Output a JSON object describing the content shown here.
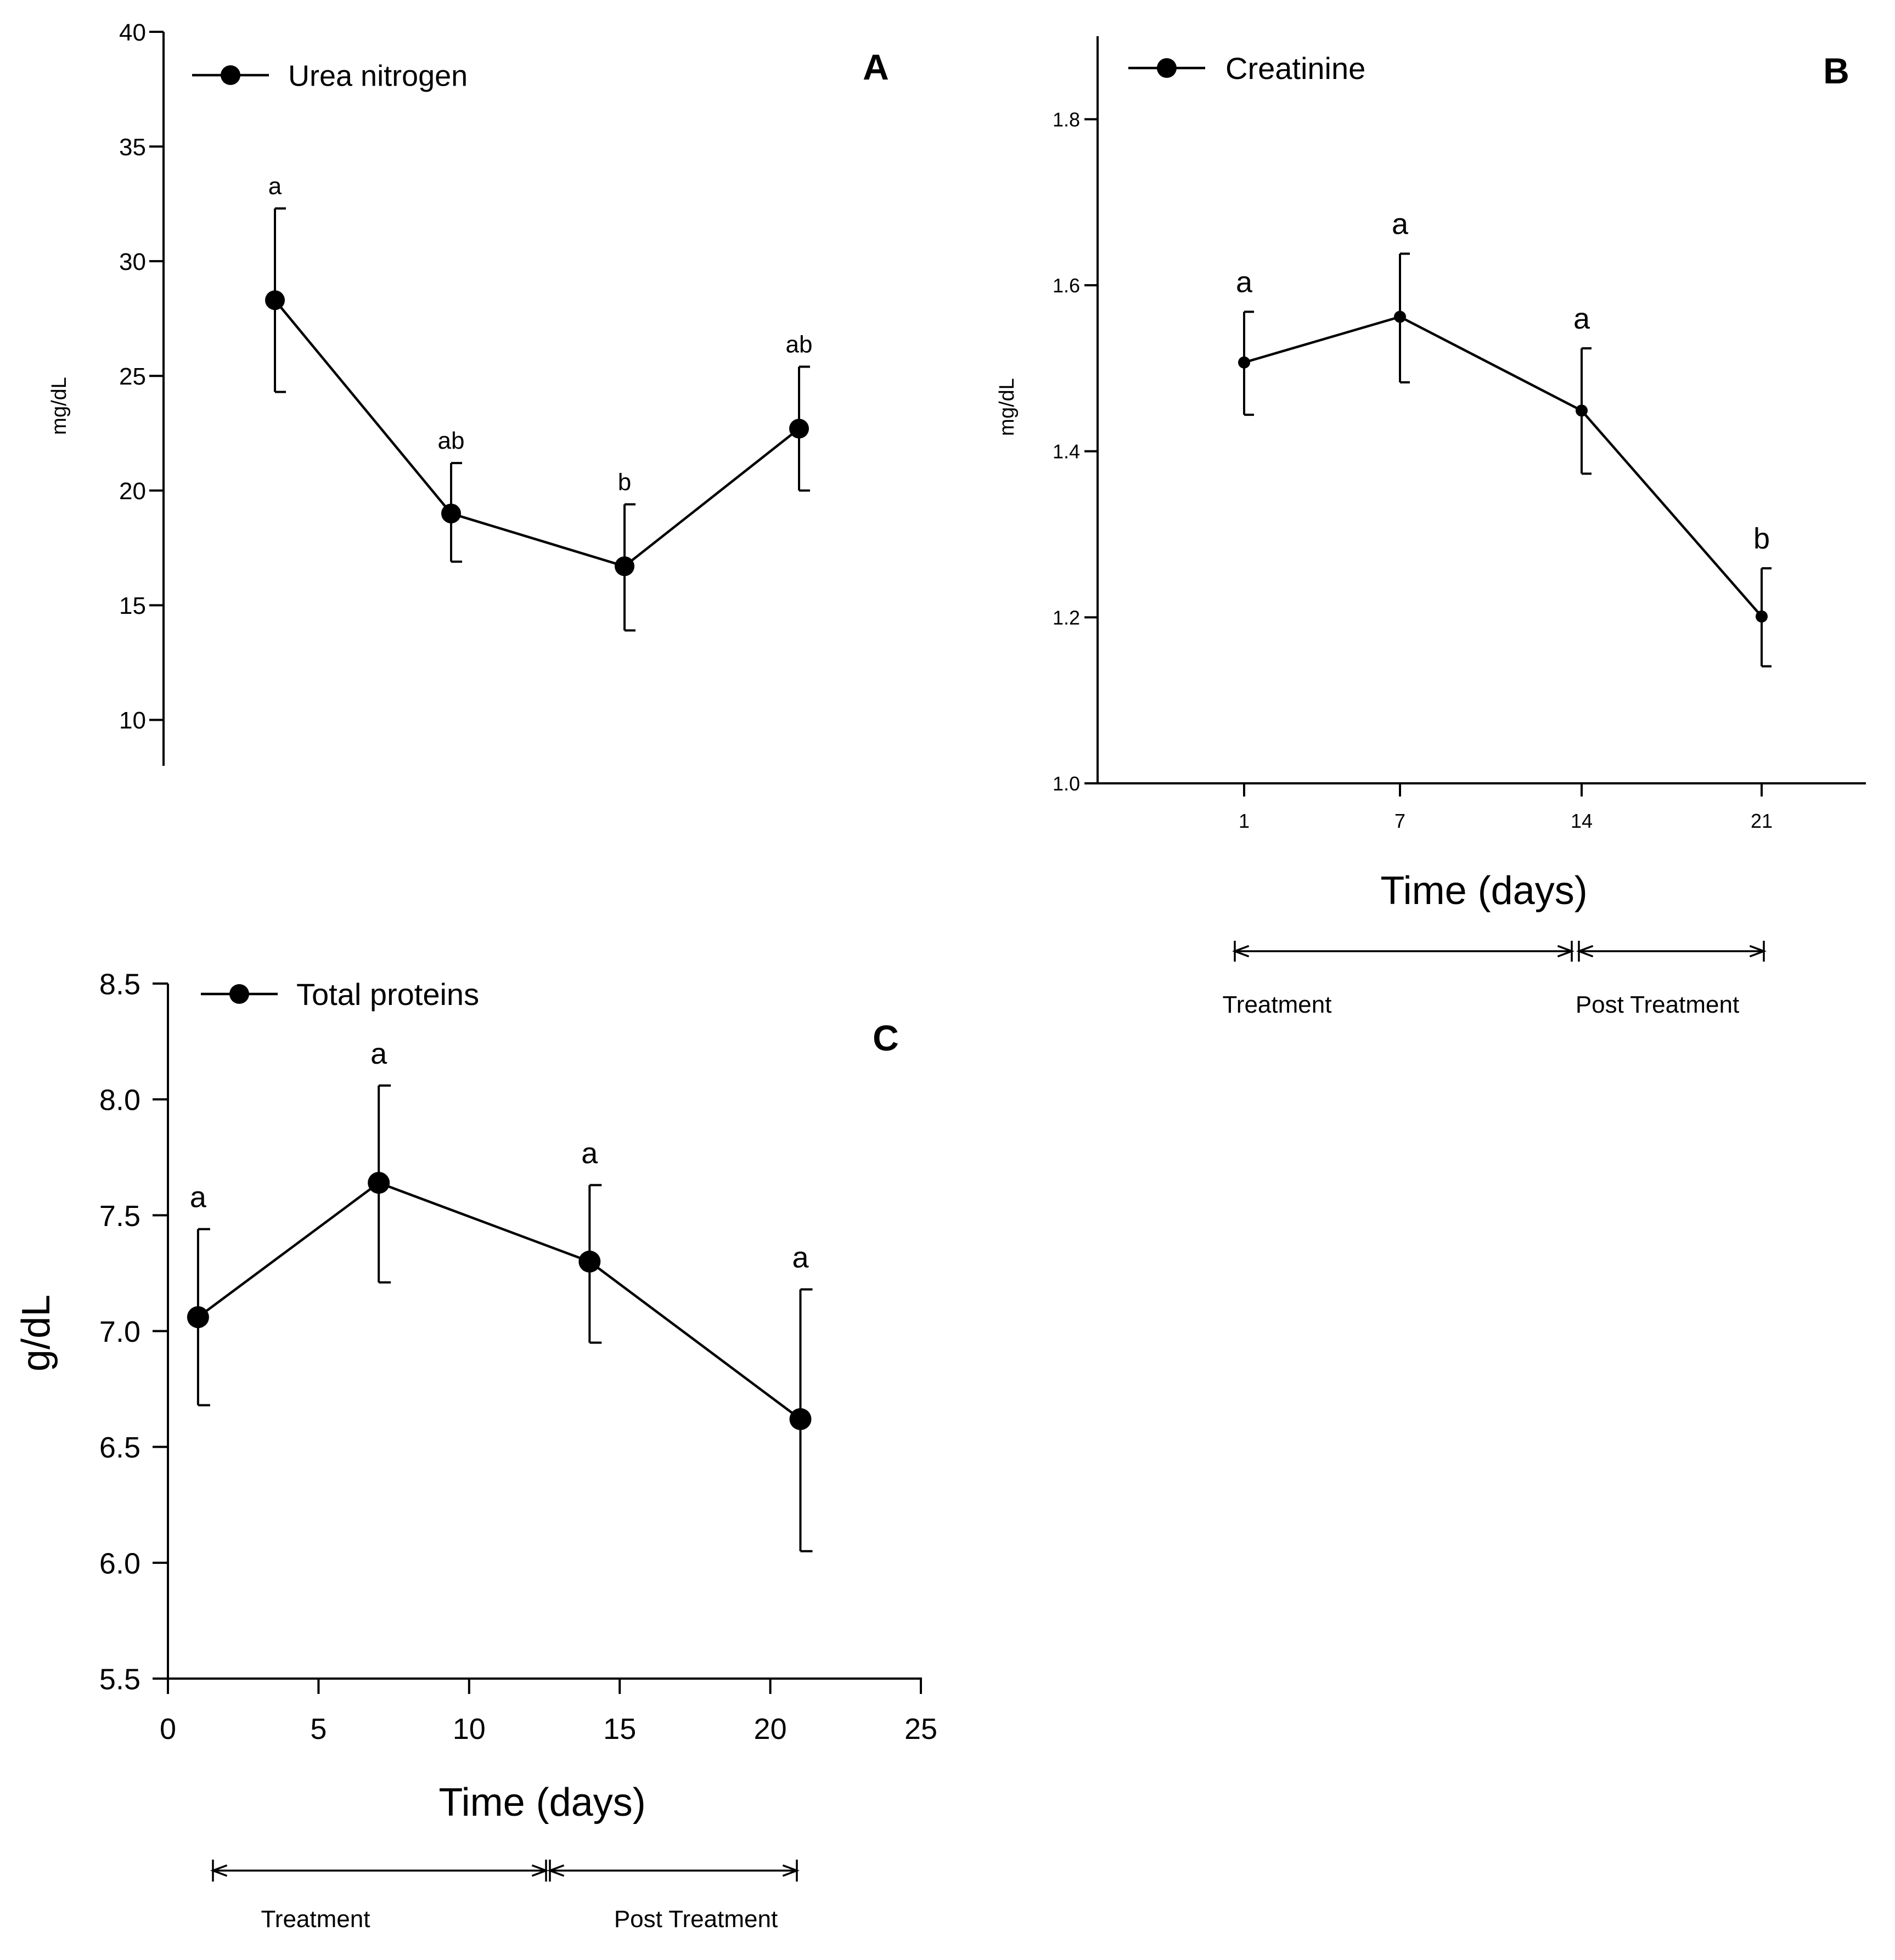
{
  "chart_data": [
    {
      "panel": "A",
      "type": "line",
      "title": "A",
      "xlabel": "",
      "ylabel": "mg/dL",
      "ylim": [
        8,
        40
      ],
      "yticks": [
        10,
        15,
        20,
        25,
        30,
        35,
        40
      ],
      "show_x_axis": false,
      "grid": false,
      "legend_position": "top-left",
      "series": [
        {
          "name": "Urea nitrogen",
          "x": [
            1,
            7,
            14,
            21
          ],
          "values": [
            28.3,
            19.0,
            16.7,
            22.7
          ],
          "err_upper": [
            32.3,
            21.2,
            19.4,
            25.4
          ],
          "err_lower": [
            24.3,
            16.9,
            13.9,
            20.0
          ],
          "letters": [
            "a",
            "ab",
            "b",
            "ab"
          ]
        }
      ]
    },
    {
      "panel": "B",
      "type": "line",
      "title": "B",
      "xlabel": "Time (days)",
      "ylabel": "mg/dL",
      "ylim": [
        1.0,
        1.9
      ],
      "yticks": [
        "1.0",
        "1.2",
        "1.4",
        "1.6",
        "1.8"
      ],
      "xticks": [
        "1",
        "7",
        "14",
        "21"
      ],
      "grid": false,
      "legend_position": "top-left",
      "series": [
        {
          "name": "Creatinine",
          "x": [
            1,
            7,
            14,
            21
          ],
          "values": [
            1.507,
            1.562,
            1.449,
            1.201
          ],
          "err_upper": [
            1.568,
            1.638,
            1.524,
            1.259
          ],
          "err_lower": [
            1.444,
            1.483,
            1.373,
            1.141
          ],
          "letters": [
            "a",
            "a",
            "a",
            "b"
          ]
        }
      ],
      "periods": [
        {
          "label": "Treatment",
          "from": 1,
          "to": 14
        },
        {
          "label": "Post Treatment",
          "from": 14,
          "to": 21
        }
      ]
    },
    {
      "panel": "C",
      "type": "line",
      "title": "C",
      "xlabel": "Time (days)",
      "ylabel": "g/dL",
      "ylim": [
        5.5,
        8.5
      ],
      "xlim": [
        0,
        25
      ],
      "yticks": [
        "5.5",
        "6.0",
        "6.5",
        "7.0",
        "7.5",
        "8.0",
        "8.5"
      ],
      "xticks": [
        "0",
        "5",
        "10",
        "15",
        "20",
        "25"
      ],
      "grid": false,
      "legend_position": "top-left",
      "series": [
        {
          "name": "Total proteins",
          "x": [
            1,
            7,
            14,
            21
          ],
          "values": [
            7.06,
            7.64,
            7.3,
            6.62
          ],
          "err_upper": [
            7.44,
            8.06,
            7.63,
            7.18
          ],
          "err_lower": [
            6.68,
            7.21,
            6.95,
            6.05
          ],
          "letters": [
            "a",
            "a",
            "a",
            "a"
          ]
        }
      ],
      "periods": [
        {
          "label": "Treatment",
          "from": 1.5,
          "to": 12.6
        },
        {
          "label": "Post Treatment",
          "from": 12.6,
          "to": 21
        }
      ]
    }
  ]
}
